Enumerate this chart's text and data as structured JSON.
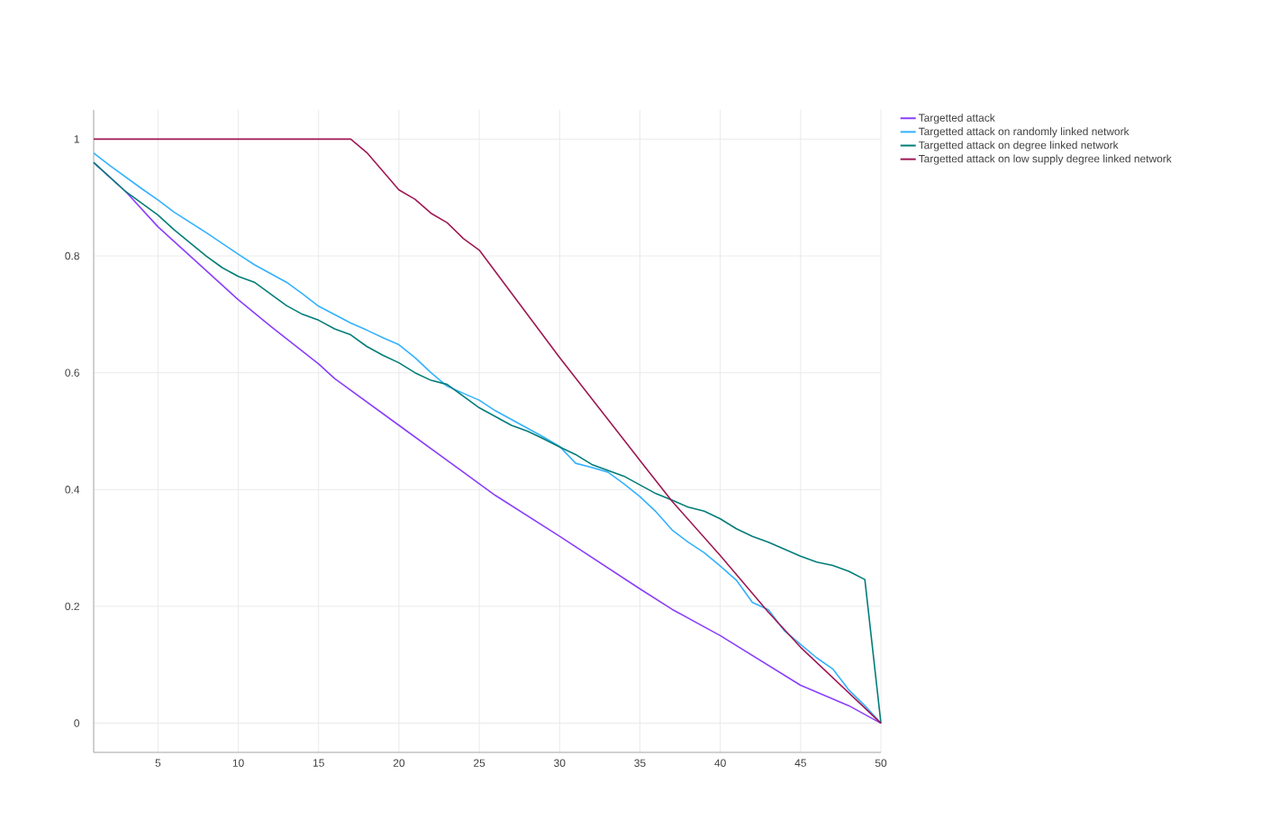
{
  "chart_data": {
    "type": "line",
    "xlim": [
      1,
      50
    ],
    "ylim": [
      -0.05,
      1.05
    ],
    "xticks": [
      5,
      10,
      15,
      20,
      25,
      30,
      35,
      40,
      45,
      50
    ],
    "yticks": [
      0,
      0.2,
      0.4,
      0.6,
      0.8,
      1
    ],
    "grid": true,
    "legend": "top right",
    "line_style": "solid",
    "marker": "none",
    "series": [
      {
        "name": "Targetted attack",
        "color": "#8a3ffc",
        "x": [
          1,
          3,
          5,
          6,
          10,
          12,
          15,
          16,
          20,
          25,
          26,
          30,
          35,
          37,
          40,
          45,
          48,
          50
        ],
        "values": [
          0.96,
          0.91,
          0.85,
          0.825,
          0.725,
          0.68,
          0.615,
          0.59,
          0.51,
          0.41,
          0.39,
          0.32,
          0.23,
          0.195,
          0.15,
          0.065,
          0.03,
          0
        ]
      },
      {
        "name": "Targetted attack on randomly linked network",
        "color": "#33b1ff",
        "x": [
          1,
          2,
          3,
          4,
          5,
          6,
          8,
          10,
          11,
          13,
          14,
          15,
          17,
          18,
          19,
          20,
          21,
          22,
          23,
          24,
          25,
          26,
          27,
          28,
          29,
          30,
          31,
          32,
          33,
          34,
          35,
          36,
          37,
          38,
          39,
          40,
          41,
          42,
          43,
          44,
          45,
          46,
          47,
          48,
          49,
          50
        ],
        "values": [
          0.976,
          0.955,
          0.935,
          0.915,
          0.896,
          0.875,
          0.84,
          0.803,
          0.785,
          0.755,
          0.735,
          0.714,
          0.685,
          0.673,
          0.66,
          0.648,
          0.626,
          0.6,
          0.577,
          0.565,
          0.553,
          0.535,
          0.52,
          0.505,
          0.49,
          0.474,
          0.445,
          0.438,
          0.43,
          0.41,
          0.388,
          0.362,
          0.331,
          0.31,
          0.292,
          0.269,
          0.245,
          0.207,
          0.194,
          0.158,
          0.135,
          0.112,
          0.093,
          0.057,
          0.03,
          0
        ]
      },
      {
        "name": "Targetted attack on degree linked network",
        "color": "#007d79",
        "x": [
          1,
          3,
          5,
          6,
          8,
          9,
          10,
          11,
          12,
          13,
          14,
          15,
          16,
          17,
          18,
          19,
          20,
          21,
          22,
          23,
          24,
          25,
          26,
          27,
          28,
          29,
          30,
          31,
          32,
          33,
          34,
          35,
          36,
          37,
          38,
          39,
          40,
          41,
          42,
          43,
          44,
          45,
          46,
          47,
          48,
          49,
          50
        ],
        "values": [
          0.96,
          0.91,
          0.87,
          0.845,
          0.8,
          0.78,
          0.765,
          0.755,
          0.735,
          0.715,
          0.7,
          0.69,
          0.675,
          0.665,
          0.645,
          0.63,
          0.617,
          0.6,
          0.587,
          0.58,
          0.56,
          0.54,
          0.525,
          0.51,
          0.5,
          0.487,
          0.473,
          0.46,
          0.443,
          0.433,
          0.423,
          0.408,
          0.393,
          0.382,
          0.37,
          0.363,
          0.35,
          0.333,
          0.32,
          0.31,
          0.298,
          0.286,
          0.276,
          0.27,
          0.26,
          0.246,
          0
        ]
      },
      {
        "name": "Targetted attack on low supply degree linked network",
        "color": "#9f1853",
        "x": [
          1,
          17,
          18,
          19,
          20,
          21,
          22,
          23,
          24,
          25,
          30,
          35,
          37,
          40,
          43,
          45,
          50
        ],
        "values": [
          1,
          1,
          0.977,
          0.945,
          0.913,
          0.897,
          0.873,
          0.857,
          0.83,
          0.81,
          0.626,
          0.45,
          0.38,
          0.287,
          0.19,
          0.13,
          0
        ]
      }
    ]
  }
}
